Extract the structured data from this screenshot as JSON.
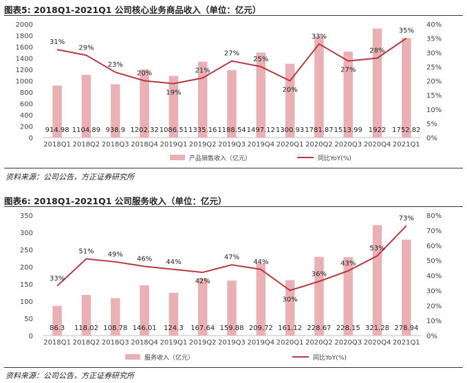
{
  "figures": [
    {
      "label": "图表5:",
      "title": "2018Q1-2021Q1 公司核心业务商品收入（单位：亿元）",
      "source": "资料来源：公司公告，方正证券研究所"
    },
    {
      "label": "图表6:",
      "title": "2018Q1-2021Q1 公司服务收入（单位：亿元）",
      "source": "资料来源：公司公告，方正证券研究所"
    }
  ],
  "colors": {
    "bar": "#e9b0b6",
    "line": "#b5393f",
    "axis": "#bfbfbf",
    "text": "#404040"
  },
  "chart_data": [
    {
      "type": "bar",
      "categories": [
        "2018Q1",
        "2018Q2",
        "2018Q3",
        "2018Q4",
        "2019Q1",
        "2019Q2",
        "2019Q3",
        "2019Q4",
        "2020Q1",
        "2020Q2",
        "2020Q3",
        "2020Q4",
        "2021Q1"
      ],
      "series": [
        {
          "name": "产品销售收入（亿元）",
          "type": "bar",
          "axis": "left",
          "values": [
            914.98,
            1104.89,
            938.9,
            1202.32,
            1086.51,
            1335.16,
            1188.54,
            1497.12,
            1300.93,
            1781.87,
            1513.99,
            1922,
            1752.82
          ],
          "labels": [
            "914.98",
            "1104.89",
            "938.9",
            "1202.32",
            "1086.51",
            "1335.16",
            "1188.54",
            "1497.12",
            "1300.93",
            "1781.87",
            "1513.99",
            "1922",
            "1752.82"
          ]
        },
        {
          "name": "同比YoY(%)",
          "type": "line",
          "axis": "right",
          "values": [
            31,
            29,
            23,
            20,
            19,
            21,
            27,
            25,
            20,
            33,
            27,
            28,
            35
          ],
          "labels": [
            "31%",
            "29%",
            "23%",
            "20%",
            "19%",
            "21%",
            "27%",
            "25%",
            "20%",
            "33%",
            "27%",
            "28%",
            "35%"
          ]
        }
      ],
      "ylim_left": [
        0,
        2000
      ],
      "yticks_left": [
        0,
        200,
        400,
        600,
        800,
        1000,
        1200,
        1400,
        1600,
        1800,
        2000
      ],
      "ylim_right": [
        0,
        40
      ],
      "yticks_right": [
        "0%",
        "5%",
        "10%",
        "15%",
        "20%",
        "25%",
        "30%",
        "35%",
        "40%"
      ],
      "legend_position": "bottom"
    },
    {
      "type": "bar",
      "categories": [
        "2018Q1",
        "2018Q2",
        "2018Q3",
        "2018Q4",
        "2019Q1",
        "2019Q2",
        "2019Q3",
        "2019Q4",
        "2020Q1",
        "2020Q2",
        "2020Q3",
        "2020Q4",
        "2021Q1"
      ],
      "series": [
        {
          "name": "服务收入（亿元）",
          "type": "bar",
          "axis": "left",
          "values": [
            86.3,
            118.02,
            108.78,
            146.01,
            124.3,
            167.64,
            159.88,
            209.72,
            161.12,
            228.67,
            228.15,
            321.28,
            278.94
          ],
          "labels": [
            "86.3",
            "118.02",
            "108.78",
            "146.01",
            "124.3",
            "167.64",
            "159.88",
            "209.72",
            "161.12",
            "228.67",
            "228.15",
            "321.28",
            "278.94"
          ]
        },
        {
          "name": "同比YoY(%)",
          "type": "line",
          "axis": "right",
          "values": [
            33,
            51,
            49,
            46,
            44,
            42,
            47,
            44,
            30,
            36,
            43,
            53,
            73
          ],
          "labels": [
            "33%",
            "51%",
            "49%",
            "46%",
            "44%",
            "42%",
            "47%",
            "44%",
            "30%",
            "36%",
            "43%",
            "53%",
            "73%"
          ]
        }
      ],
      "ylim_left": [
        0,
        350
      ],
      "yticks_left": [
        0,
        50,
        100,
        150,
        200,
        250,
        300,
        350
      ],
      "ylim_right": [
        0,
        80
      ],
      "yticks_right": [
        "0%",
        "10%",
        "20%",
        "30%",
        "40%",
        "50%",
        "60%",
        "70%",
        "80%"
      ],
      "legend_position": "bottom"
    }
  ]
}
